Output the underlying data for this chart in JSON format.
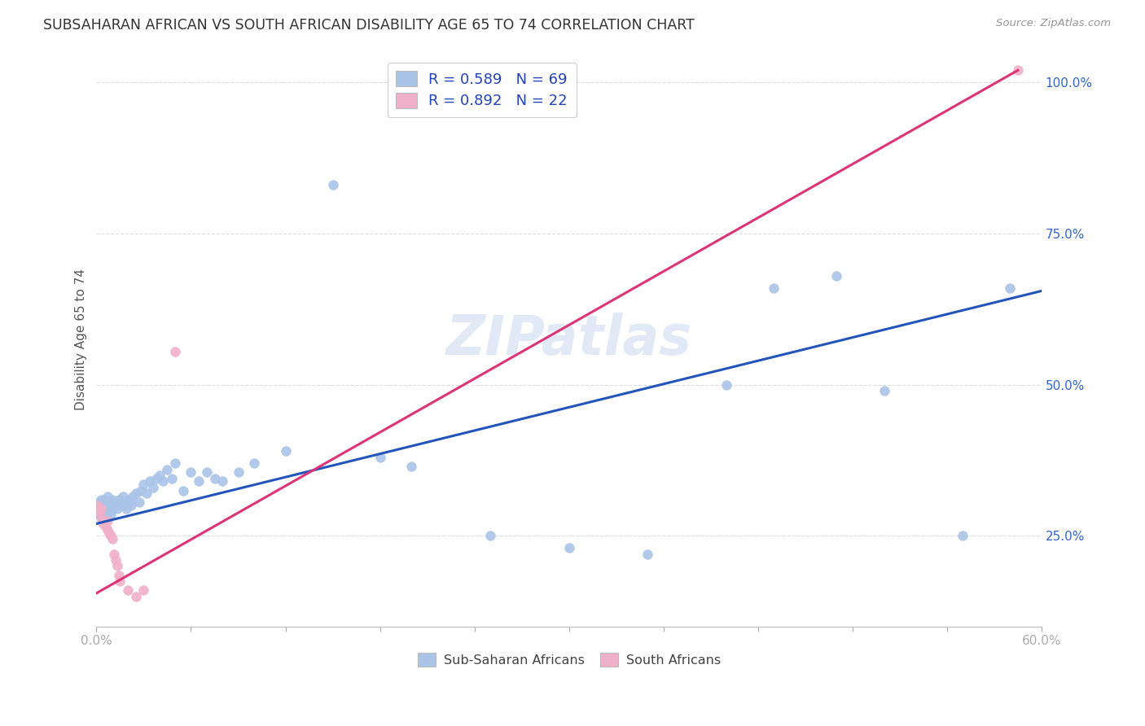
{
  "title": "SUBSAHARAN AFRICAN VS SOUTH AFRICAN DISABILITY AGE 65 TO 74 CORRELATION CHART",
  "source": "Source: ZipAtlas.com",
  "ylabel": "Disability Age 65 to 74",
  "xlim": [
    0.0,
    0.6
  ],
  "ylim": [
    0.1,
    1.05
  ],
  "xticks": [
    0.0,
    0.06,
    0.12,
    0.18,
    0.24,
    0.3,
    0.36,
    0.42,
    0.48,
    0.54,
    0.6
  ],
  "xticklabels": [
    "0.0%",
    "",
    "",
    "",
    "",
    "",
    "",
    "",
    "",
    "",
    "60.0%"
  ],
  "yticks": [
    0.25,
    0.5,
    0.75,
    1.0
  ],
  "yticklabels": [
    "25.0%",
    "50.0%",
    "75.0%",
    "100.0%"
  ],
  "blue_color": "#aac4e8",
  "pink_color": "#f0b0c8",
  "blue_line_color": "#2255bb",
  "pink_line_color": "#dd3377",
  "legend_text_color": "#2244bb",
  "blue_line_x0": 0.0,
  "blue_line_y0": 0.27,
  "blue_line_x1": 0.6,
  "blue_line_y1": 0.655,
  "pink_line_x0": 0.0,
  "pink_line_y0": 0.155,
  "pink_line_x1": 0.585,
  "pink_line_y1": 1.02,
  "blue_points_x": [
    0.001,
    0.001,
    0.002,
    0.002,
    0.002,
    0.003,
    0.003,
    0.003,
    0.004,
    0.004,
    0.005,
    0.005,
    0.006,
    0.006,
    0.007,
    0.007,
    0.008,
    0.008,
    0.009,
    0.009,
    0.01,
    0.01,
    0.011,
    0.012,
    0.013,
    0.014,
    0.015,
    0.016,
    0.017,
    0.018,
    0.019,
    0.02,
    0.021,
    0.022,
    0.023,
    0.025,
    0.027,
    0.028,
    0.03,
    0.032,
    0.034,
    0.036,
    0.038,
    0.04,
    0.042,
    0.045,
    0.048,
    0.05,
    0.055,
    0.06,
    0.065,
    0.07,
    0.075,
    0.08,
    0.09,
    0.1,
    0.12,
    0.15,
    0.18,
    0.2,
    0.25,
    0.3,
    0.35,
    0.4,
    0.43,
    0.47,
    0.5,
    0.55,
    0.58
  ],
  "blue_points_y": [
    0.295,
    0.3,
    0.29,
    0.305,
    0.285,
    0.295,
    0.31,
    0.28,
    0.3,
    0.295,
    0.29,
    0.31,
    0.295,
    0.28,
    0.3,
    0.315,
    0.29,
    0.305,
    0.285,
    0.3,
    0.31,
    0.295,
    0.3,
    0.305,
    0.295,
    0.31,
    0.3,
    0.305,
    0.315,
    0.3,
    0.295,
    0.31,
    0.305,
    0.3,
    0.315,
    0.32,
    0.305,
    0.325,
    0.335,
    0.32,
    0.34,
    0.33,
    0.345,
    0.35,
    0.34,
    0.36,
    0.345,
    0.37,
    0.325,
    0.355,
    0.34,
    0.355,
    0.345,
    0.34,
    0.355,
    0.37,
    0.39,
    0.83,
    0.38,
    0.365,
    0.25,
    0.23,
    0.22,
    0.5,
    0.66,
    0.68,
    0.49,
    0.25,
    0.66
  ],
  "pink_points_x": [
    0.001,
    0.002,
    0.003,
    0.003,
    0.004,
    0.005,
    0.006,
    0.007,
    0.007,
    0.008,
    0.009,
    0.01,
    0.011,
    0.012,
    0.013,
    0.014,
    0.015,
    0.02,
    0.025,
    0.03,
    0.05,
    0.585
  ],
  "pink_points_y": [
    0.3,
    0.29,
    0.28,
    0.295,
    0.27,
    0.275,
    0.265,
    0.26,
    0.275,
    0.255,
    0.25,
    0.245,
    0.22,
    0.21,
    0.2,
    0.185,
    0.175,
    0.16,
    0.15,
    0.16,
    0.555,
    1.02
  ],
  "watermark": "ZIPatlas",
  "background_color": "#ffffff",
  "grid_color": "#dddddd"
}
